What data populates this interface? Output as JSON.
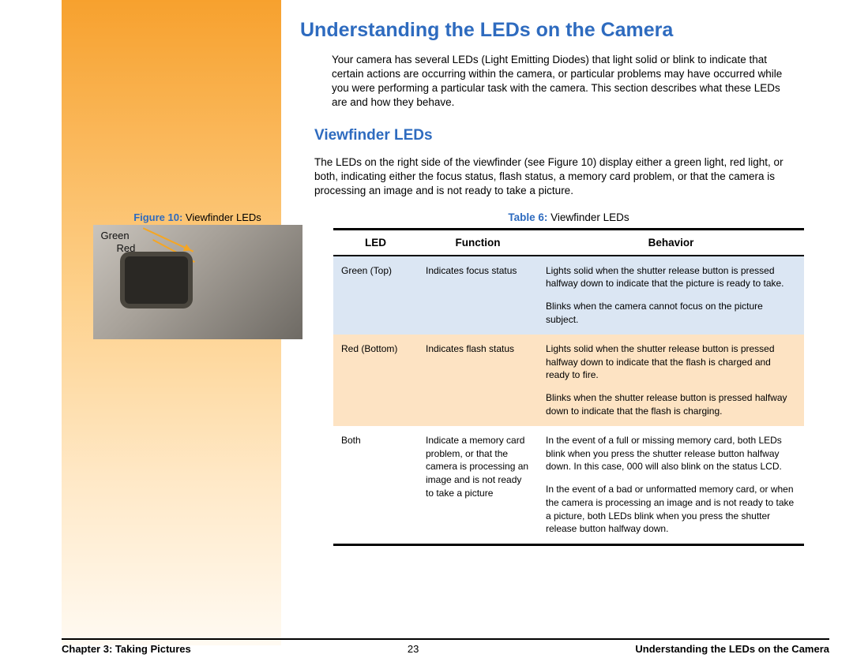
{
  "colors": {
    "heading_blue": "#2e6bbf",
    "row_blue": "#dbe6f3",
    "row_orange": "#fde3c3",
    "sidebar_top": "#f7a12e",
    "sidebar_bottom": "#fffaf2",
    "rule": "#000000"
  },
  "main": {
    "title": "Understanding the LEDs on the Camera",
    "intro": "Your camera has several LEDs (Light Emitting Diodes) that light solid or blink to indicate that certain actions are occurring within the camera, or particular problems may have occurred while you were performing a particular task with the camera. This section describes what these LEDs are and how they behave."
  },
  "section": {
    "title": "Viewfinder LEDs",
    "text": "The LEDs on the right side of the viewfinder (see Figure 10) display either a green light, red light, or both, indicating either the focus status, flash status, a memory card problem, or that the camera is processing an image and is not ready to take a picture."
  },
  "figure": {
    "label": "Figure 10:",
    "title": " Viewfinder LEDs",
    "green": "Green",
    "red": "Red"
  },
  "table": {
    "label": "Table 6:",
    "title": " Viewfinder LEDs",
    "headers": {
      "led": "LED",
      "func": "Function",
      "beh": "Behavior"
    },
    "rows": [
      {
        "led": "Green (Top)",
        "func": "Indicates focus status",
        "beh1": "Lights solid when the shutter release button is pressed halfway down to indicate that the picture is ready to take.",
        "beh2": "Blinks when the camera cannot focus on the picture subject."
      },
      {
        "led": "Red (Bottom)",
        "func": "Indicates flash status",
        "beh1": "Lights solid when the shutter release button is pressed halfway down to indicate that the flash is charged and ready to fire.",
        "beh2": "Blinks when the shutter release button is pressed halfway down to indicate that the flash is charging."
      },
      {
        "led": "Both",
        "func": "Indicate a memory card problem, or that the camera is processing an image and is not ready to take a picture",
        "beh1": "In the event of a full or missing memory card, both LEDs blink when you press the shutter release button halfway down. In this case, 000 will also blink on the status LCD.",
        "beh2": "In the event of a bad or unformatted memory card, or when the camera is processing an image and is not ready to take a picture, both LEDs blink when you press the shutter release button halfway down."
      }
    ]
  },
  "footer": {
    "left": "Chapter 3: Taking Pictures",
    "mid": "23",
    "right": "Understanding the LEDs on the Camera"
  }
}
